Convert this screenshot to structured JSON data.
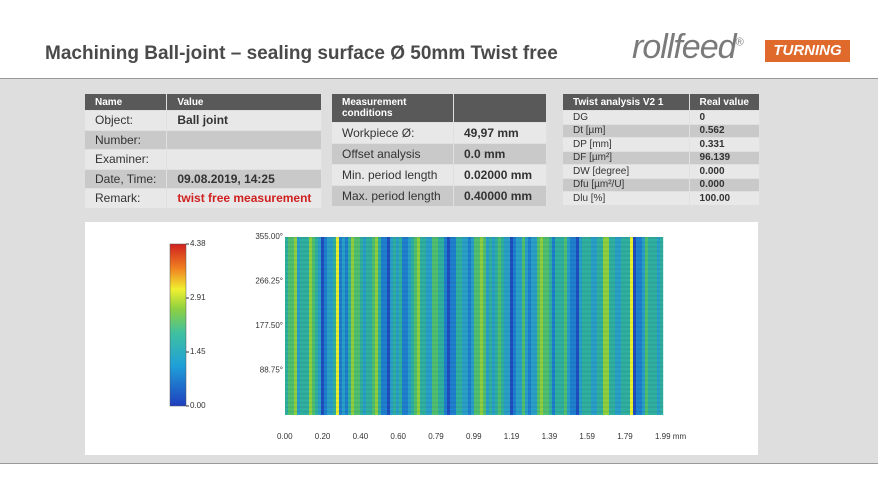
{
  "header": {
    "title": "Machining Ball-joint – sealing surface Ø 50mm Twist free",
    "logo": {
      "brand": "rollfeed",
      "mark": "®",
      "tag": "TURNING"
    }
  },
  "info_table": {
    "columns": [
      "Name",
      "Value"
    ],
    "rows": [
      {
        "label": "Object:",
        "value": "Ball joint"
      },
      {
        "label": "Number:"
      },
      {
        "label": "Examiner:"
      },
      {
        "label": "Date, Time:",
        "value": "09.08.2019, 14:25"
      },
      {
        "label": "Remark:",
        "value": "twist free measurement"
      }
    ]
  },
  "conditions_table": {
    "columns": [
      "Measurement conditions"
    ],
    "rows": [
      {
        "label": "Workpiece Ø:",
        "value": "49,97 mm"
      },
      {
        "label": "Offset analysis",
        "value": "0.0 mm"
      },
      {
        "label": "Min. period length",
        "value": "0.02000 mm"
      },
      {
        "label": "Max. period length",
        "value": "0.40000 mm"
      }
    ]
  },
  "twist_table": {
    "columns": [
      "Twist analysis V2 1",
      "Real value"
    ],
    "rows": [
      {
        "label": "DG",
        "value": "0"
      },
      {
        "label": "Dt [µm]",
        "value": "0.562"
      },
      {
        "label": "DP [mm]",
        "value": "0.331"
      },
      {
        "label": "DF [µm²]",
        "value": "96.139"
      },
      {
        "label": "DW [degree]",
        "value": "0.000"
      },
      {
        "label": "Dfu [µm²/U]",
        "value": "0.000"
      },
      {
        "label": "Dlu [%]",
        "value": "100.00"
      }
    ]
  },
  "heatmap": {
    "colorbar_ticks": [
      "4.38",
      "2.91",
      "1.45",
      "0.00"
    ],
    "y_ticks": [
      "355.00°",
      "266.25°",
      "177.50°",
      "88.75°"
    ],
    "x_ticks": [
      "0.00",
      "0.20",
      "0.40",
      "0.60",
      "0.79",
      "0.99",
      "1.19",
      "1.39",
      "1.59",
      "1.79",
      "1.99 mm"
    ]
  }
}
